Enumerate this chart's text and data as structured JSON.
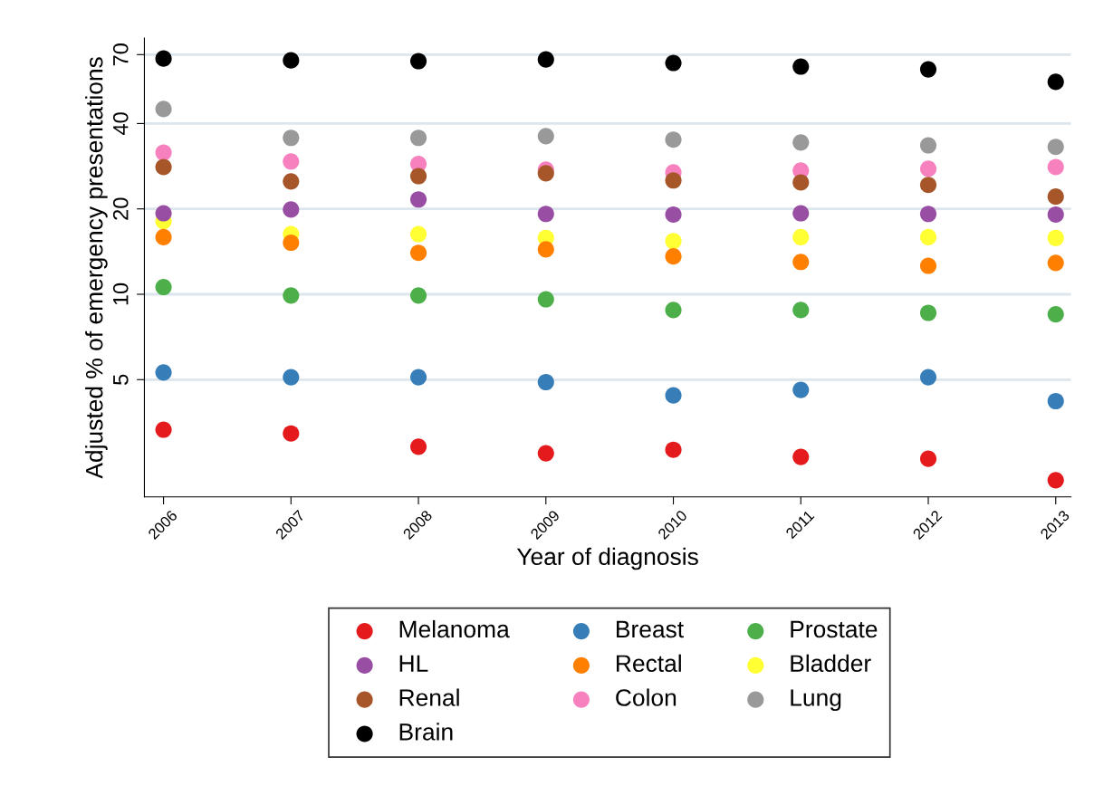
{
  "chart_data": {
    "type": "scatter",
    "xlabel": "Year of diagnosis",
    "ylabel": "Adjusted % of emergency presentations",
    "x": [
      2006,
      2007,
      2008,
      2009,
      2010,
      2011,
      2012,
      2013
    ],
    "xlim": [
      2005.85,
      2013.12
    ],
    "xticks": [
      2006,
      2007,
      2008,
      2009,
      2010,
      2011,
      2012,
      2013
    ],
    "ylim": [
      1.93,
      80
    ],
    "yticks": [
      5,
      10,
      20,
      40,
      70
    ],
    "log": "y",
    "grid": "y",
    "legend": "bottom",
    "marker": "circle",
    "series": [
      {
        "name": "Melanoma",
        "color": "#e41a1c",
        "values": [
          3.33,
          3.23,
          2.9,
          2.75,
          2.83,
          2.67,
          2.63,
          2.21
        ]
      },
      {
        "name": "Breast",
        "color": "#377eb8",
        "values": [
          5.3,
          5.1,
          5.1,
          4.9,
          4.4,
          4.6,
          5.1,
          4.2
        ]
      },
      {
        "name": "Prostate",
        "color": "#4daf4a",
        "values": [
          10.6,
          9.9,
          9.9,
          9.6,
          8.8,
          8.8,
          8.6,
          8.5
        ]
      },
      {
        "name": "HL",
        "color": "#984ea3",
        "values": [
          19.3,
          19.9,
          21.6,
          19.2,
          19.1,
          19.3,
          19.2,
          19.1
        ]
      },
      {
        "name": "Rectal",
        "color": "#ff7f00",
        "values": [
          15.9,
          15.2,
          14.0,
          14.4,
          13.6,
          13.0,
          12.6,
          12.9
        ]
      },
      {
        "name": "Bladder",
        "color": "#ffff33",
        "values": [
          18.1,
          16.3,
          16.3,
          15.8,
          15.4,
          15.9,
          15.9,
          15.8
        ]
      },
      {
        "name": "Renal",
        "color": "#a65628",
        "values": [
          28.1,
          25.0,
          26.1,
          26.7,
          25.2,
          24.8,
          24.3,
          22.1
        ]
      },
      {
        "name": "Colon",
        "color": "#f781bf",
        "values": [
          31.6,
          29.4,
          28.8,
          27.5,
          26.9,
          27.3,
          27.7,
          28.1
        ]
      },
      {
        "name": "Lung",
        "color": "#999999",
        "values": [
          45.0,
          35.6,
          35.6,
          36.1,
          35.1,
          34.3,
          33.5,
          33.1
        ]
      },
      {
        "name": "Brain",
        "color": "#000000",
        "values": [
          67.8,
          66.8,
          66.4,
          67.3,
          65.4,
          63.5,
          62.1,
          56.1
        ]
      }
    ]
  }
}
